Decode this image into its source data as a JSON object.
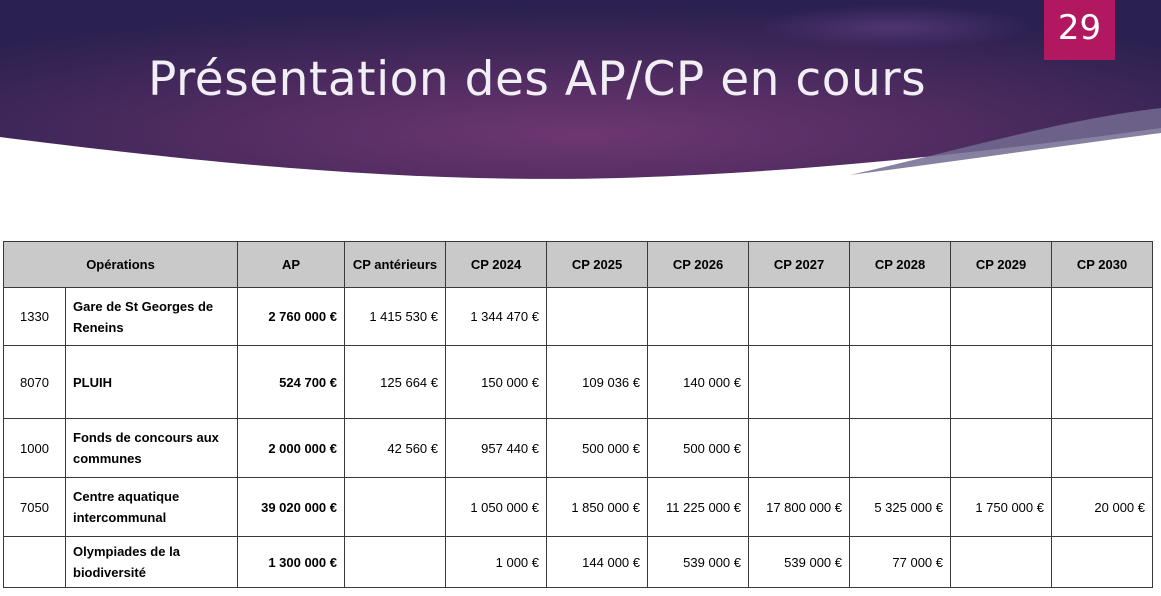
{
  "slide": {
    "title": "Présentation des AP/CP en cours",
    "number": "29"
  },
  "colors": {
    "banner_dark": "#2d2250",
    "banner_mid": "#6b3470",
    "slide_number_bg": "#b2185f",
    "table_header_bg": "#c9c9c9"
  },
  "table": {
    "headers": [
      "Opérations",
      "AP",
      "CP antérieurs",
      "CP 2024",
      "CP 2025",
      "CP 2026",
      "CP 2027",
      "CP 2028",
      "CP 2029",
      "CP 2030"
    ],
    "rows": [
      {
        "code": "1330",
        "name": "Gare de St Georges de Reneins",
        "ap": "2 760 000 €",
        "cp": [
          "1 415 530 €",
          "1 344 470 €",
          null,
          null,
          null,
          null,
          null,
          null
        ]
      },
      {
        "code": "8070",
        "name": "PLUIH",
        "ap": "524 700 €",
        "cp": [
          "125 664 €",
          "150 000 €",
          "109 036 €",
          "140 000 €",
          null,
          null,
          null,
          null
        ]
      },
      {
        "code": "1000",
        "name": "Fonds de concours aux communes",
        "ap": "2 000 000 €",
        "cp": [
          "42 560 €",
          "957 440 €",
          "500 000 €",
          "500 000 €",
          null,
          null,
          null,
          null
        ]
      },
      {
        "code": "7050",
        "name": "Centre aquatique intercommunal",
        "ap": "39 020 000 €",
        "cp": [
          null,
          "1 050 000 €",
          "1 850 000 €",
          "11 225 000 €",
          "17 800 000 €",
          "5 325 000 €",
          "1 750 000 €",
          "20 000 €"
        ]
      },
      {
        "code": "",
        "name": "Olympiades de la biodiversité",
        "ap": "1 300 000 €",
        "cp": [
          null,
          "1 000 €",
          "144 000 €",
          "539 000 €",
          "539 000 €",
          "77 000 €",
          null,
          null
        ]
      }
    ]
  }
}
